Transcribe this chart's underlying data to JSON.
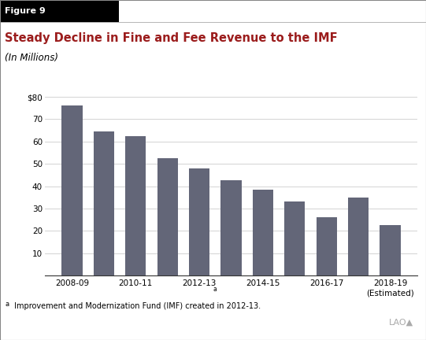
{
  "title": "Steady Decline in Fine and Fee Revenue to the IMF",
  "subtitle": "(In Millions)",
  "figure_label": "Figure 9",
  "x_labels": [
    "2008-09",
    "",
    "2010-11",
    "",
    "2012-13",
    "",
    "2014-15",
    "",
    "2016-17",
    "",
    "2018-19\n(Estimated)"
  ],
  "x_label_superscript_idx": 4,
  "values": [
    76,
    64.5,
    62.5,
    52.5,
    48,
    42.5,
    38.5,
    33,
    26,
    35,
    22.5
  ],
  "bar_color": "#636678",
  "background_color": "#ffffff",
  "ylim": [
    0,
    80
  ],
  "yticks": [
    0,
    10,
    20,
    30,
    40,
    50,
    60,
    70,
    80
  ],
  "ytick_labels": [
    "",
    "10",
    "20",
    "30",
    "40",
    "50",
    "60",
    "70",
    "$80"
  ],
  "title_color": "#9b1c1c",
  "figure_label_bg": "#000000",
  "figure_label_color": "#ffffff",
  "footnote_superscript": "a",
  "footnote_text": " Improvement and Modernization Fund (IMF) created in 2012-13.",
  "grid_color": "#cccccc",
  "axis_color": "#333333",
  "bar_width": 0.65,
  "lao_color": "#aaaaaa"
}
